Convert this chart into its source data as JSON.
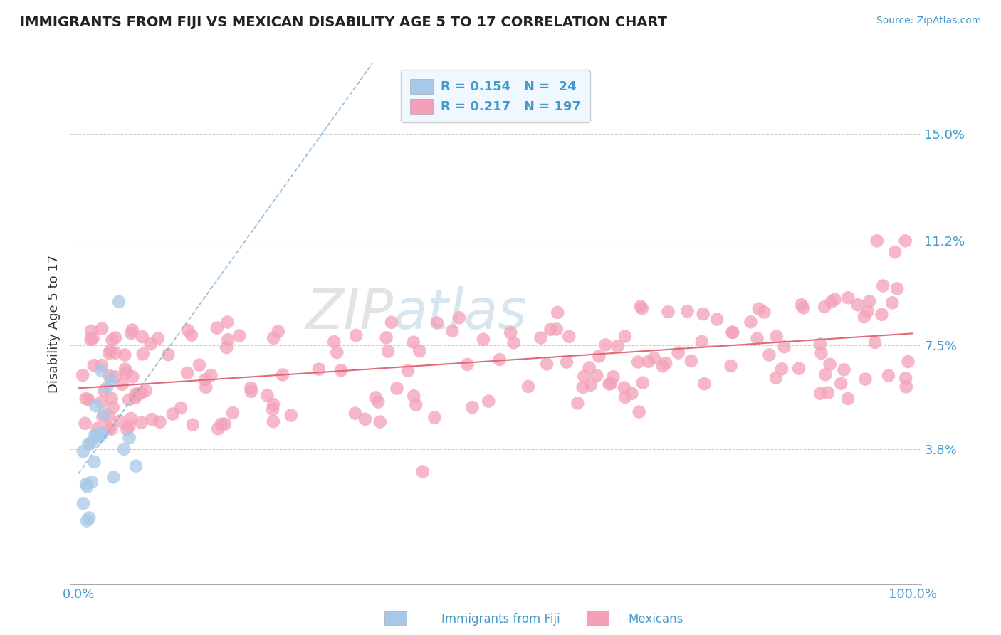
{
  "title": "IMMIGRANTS FROM FIJI VS MEXICAN DISABILITY AGE 5 TO 17 CORRELATION CHART",
  "source": "Source: ZipAtlas.com",
  "ylabel": "Disability Age 5 to 17",
  "xlim": [
    -0.01,
    1.01
  ],
  "ylim": [
    -0.01,
    0.175
  ],
  "yticks": [
    0.038,
    0.075,
    0.112,
    0.15
  ],
  "ytick_labels": [
    "3.8%",
    "7.5%",
    "11.2%",
    "15.0%"
  ],
  "fiji_R": 0.154,
  "fiji_N": 24,
  "mexican_R": 0.217,
  "mexican_N": 197,
  "fiji_color": "#a8c8e8",
  "mexican_color": "#f4a0b8",
  "fiji_line_color": "#7aaad0",
  "mexican_line_color": "#e06878",
  "background_color": "#ffffff",
  "grid_color": "#d0d0d0",
  "title_color": "#222222",
  "label_color": "#4499cc",
  "watermark_color": "#b8d8f0",
  "legend_face": "#f0f8ff",
  "legend_edge": "#cccccc"
}
